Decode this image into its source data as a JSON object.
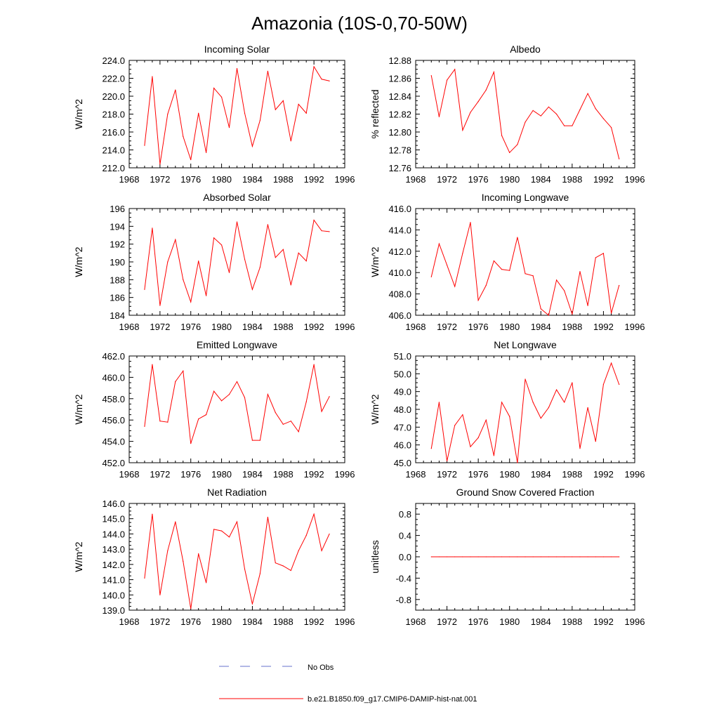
{
  "page": {
    "title": "Amazonia (10S-0,70-50W)"
  },
  "legend": {
    "items": [
      {
        "label": "No Obs",
        "color": "#6670cc",
        "dashed": true
      },
      {
        "label": "b.e21.B1850.f09_g17.CMIP6-DAMIP-hist-nat.001",
        "color": "#ff0000",
        "dashed": false
      }
    ]
  },
  "colors": {
    "model": "#ff0000",
    "obs": "#6670cc"
  },
  "chart_data": [
    {
      "type": "line",
      "title": "Incoming Solar",
      "ylabel": "W/m^2",
      "xlim": [
        1968,
        1996
      ],
      "ylim": [
        212,
        224
      ],
      "xticks": [
        1968,
        1972,
        1976,
        1980,
        1984,
        1988,
        1992,
        1996
      ],
      "yticks": [
        "212.0",
        "214.0",
        "216.0",
        "218.0",
        "220.0",
        "222.0",
        "224.0"
      ],
      "x": [
        1970,
        1971,
        1972,
        1973,
        1974,
        1975,
        1976,
        1977,
        1978,
        1979,
        1980,
        1981,
        1982,
        1983,
        1984,
        1985,
        1986,
        1987,
        1988,
        1989,
        1990,
        1991,
        1992,
        1993,
        1994
      ],
      "series": [
        {
          "values": [
            214.5,
            222.2,
            212.4,
            218.0,
            220.7,
            215.5,
            212.9,
            218.1,
            213.7,
            220.9,
            219.9,
            216.5,
            223.1,
            218.1,
            214.4,
            217.3,
            222.8,
            218.5,
            219.5,
            215.0,
            219.1,
            218.1,
            223.3,
            221.9,
            221.7
          ]
        }
      ]
    },
    {
      "type": "line",
      "title": "Albedo",
      "ylabel": "% reflected",
      "xlim": [
        1968,
        1996
      ],
      "ylim": [
        12.76,
        12.88
      ],
      "xticks": [
        1968,
        1972,
        1976,
        1980,
        1984,
        1988,
        1992,
        1996
      ],
      "yticks": [
        "12.76",
        "12.78",
        "12.80",
        "12.82",
        "12.84",
        "12.86",
        "12.88"
      ],
      "x": [
        1970,
        1971,
        1972,
        1973,
        1974,
        1975,
        1976,
        1977,
        1978,
        1979,
        1980,
        1981,
        1982,
        1983,
        1984,
        1985,
        1986,
        1987,
        1988,
        1989,
        1990,
        1991,
        1992,
        1993,
        1994
      ],
      "series": [
        {
          "values": [
            12.863,
            12.817,
            12.858,
            12.87,
            12.802,
            12.822,
            12.834,
            12.847,
            12.867,
            12.796,
            12.777,
            12.786,
            12.811,
            12.824,
            12.818,
            12.828,
            12.82,
            12.807,
            12.807,
            12.825,
            12.843,
            12.826,
            12.815,
            12.805,
            12.77
          ]
        }
      ]
    },
    {
      "type": "line",
      "title": "Absorbed Solar",
      "ylabel": "W/m^2",
      "xlim": [
        1968,
        1996
      ],
      "ylim": [
        184,
        196
      ],
      "xticks": [
        1968,
        1972,
        1976,
        1980,
        1984,
        1988,
        1992,
        1996
      ],
      "yticks": [
        "184",
        "186",
        "188",
        "190",
        "192",
        "194",
        "196"
      ],
      "x": [
        1970,
        1971,
        1972,
        1973,
        1974,
        1975,
        1976,
        1977,
        1978,
        1979,
        1980,
        1981,
        1982,
        1983,
        1984,
        1985,
        1986,
        1987,
        1988,
        1989,
        1990,
        1991,
        1992,
        1993,
        1994
      ],
      "series": [
        {
          "values": [
            186.9,
            193.8,
            185.1,
            190.0,
            192.5,
            188.0,
            185.5,
            190.1,
            186.2,
            192.7,
            191.9,
            188.8,
            194.5,
            190.3,
            186.9,
            189.4,
            194.2,
            190.5,
            191.4,
            187.4,
            191.0,
            190.1,
            194.7,
            193.5,
            193.4
          ]
        }
      ]
    },
    {
      "type": "line",
      "title": "Incoming Longwave",
      "ylabel": "W/m^2",
      "xlim": [
        1968,
        1996
      ],
      "ylim": [
        406,
        416
      ],
      "xticks": [
        1968,
        1972,
        1976,
        1980,
        1984,
        1988,
        1992,
        1996
      ],
      "yticks": [
        "406.0",
        "408.0",
        "410.0",
        "412.0",
        "414.0",
        "416.0"
      ],
      "x": [
        1970,
        1971,
        1972,
        1973,
        1974,
        1975,
        1976,
        1977,
        1978,
        1979,
        1980,
        1981,
        1982,
        1983,
        1984,
        1985,
        1986,
        1987,
        1988,
        1989,
        1990,
        1991,
        1992,
        1993,
        1994
      ],
      "series": [
        {
          "values": [
            409.6,
            412.7,
            410.7,
            408.7,
            411.8,
            414.7,
            407.4,
            408.8,
            411.1,
            410.3,
            410.2,
            413.3,
            409.9,
            409.7,
            406.6,
            406.0,
            409.3,
            408.3,
            406.1,
            410.1,
            406.9,
            411.4,
            411.8,
            406.2,
            408.8
          ]
        }
      ]
    },
    {
      "type": "line",
      "title": "Emitted Longwave",
      "ylabel": "W/m^2",
      "xlim": [
        1968,
        1996
      ],
      "ylim": [
        452,
        462
      ],
      "xticks": [
        1968,
        1972,
        1976,
        1980,
        1984,
        1988,
        1992,
        1996
      ],
      "yticks": [
        "452.0",
        "454.0",
        "456.0",
        "458.0",
        "460.0",
        "462.0"
      ],
      "x": [
        1970,
        1971,
        1972,
        1973,
        1974,
        1975,
        1976,
        1977,
        1978,
        1979,
        1980,
        1981,
        1982,
        1983,
        1984,
        1985,
        1986,
        1987,
        1988,
        1989,
        1990,
        1991,
        1992,
        1993,
        1994
      ],
      "series": [
        {
          "values": [
            455.4,
            461.2,
            455.9,
            455.8,
            459.6,
            460.6,
            453.8,
            456.1,
            456.5,
            458.7,
            457.8,
            458.4,
            459.6,
            458.1,
            454.1,
            454.1,
            458.4,
            456.7,
            455.6,
            455.9,
            454.9,
            457.7,
            461.2,
            456.8,
            458.2
          ]
        }
      ]
    },
    {
      "type": "line",
      "title": "Net Longwave",
      "ylabel": "W/m^2",
      "xlim": [
        1968,
        1996
      ],
      "ylim": [
        45,
        51
      ],
      "xticks": [
        1968,
        1972,
        1976,
        1980,
        1984,
        1988,
        1992,
        1996
      ],
      "yticks": [
        "45.0",
        "46.0",
        "47.0",
        "48.0",
        "49.0",
        "50.0",
        "51.0"
      ],
      "x": [
        1970,
        1971,
        1972,
        1973,
        1974,
        1975,
        1976,
        1977,
        1978,
        1979,
        1980,
        1981,
        1982,
        1983,
        1984,
        1985,
        1986,
        1987,
        1988,
        1989,
        1990,
        1991,
        1992,
        1993,
        1994
      ],
      "series": [
        {
          "values": [
            45.8,
            48.4,
            45.1,
            47.1,
            47.7,
            45.9,
            46.4,
            47.4,
            45.4,
            48.4,
            47.6,
            45.0,
            49.7,
            48.4,
            47.5,
            48.1,
            49.1,
            48.4,
            49.5,
            45.8,
            48.1,
            46.2,
            49.4,
            50.6,
            49.4
          ]
        }
      ]
    },
    {
      "type": "line",
      "title": "Net Radiation",
      "ylabel": "W/m^2",
      "xlim": [
        1968,
        1996
      ],
      "ylim": [
        139,
        146
      ],
      "xticks": [
        1968,
        1972,
        1976,
        1980,
        1984,
        1988,
        1992,
        1996
      ],
      "yticks": [
        "139.0",
        "140.0",
        "141.0",
        "142.0",
        "143.0",
        "144.0",
        "145.0",
        "146.0"
      ],
      "x": [
        1970,
        1971,
        1972,
        1973,
        1974,
        1975,
        1976,
        1977,
        1978,
        1979,
        1980,
        1981,
        1982,
        1983,
        1984,
        1985,
        1986,
        1987,
        1988,
        1989,
        1990,
        1991,
        1992,
        1993,
        1994
      ],
      "series": [
        {
          "values": [
            141.1,
            145.3,
            140.0,
            142.9,
            144.8,
            142.2,
            139.1,
            142.7,
            140.8,
            144.3,
            144.2,
            143.8,
            144.8,
            141.7,
            139.4,
            141.4,
            145.1,
            142.1,
            141.9,
            141.6,
            142.9,
            143.9,
            145.3,
            142.9,
            144.0
          ]
        }
      ]
    },
    {
      "type": "line",
      "title": "Ground Snow Covered Fraction",
      "ylabel": "unitless",
      "xlim": [
        1968,
        1996
      ],
      "ylim": [
        -1,
        1
      ],
      "xticks": [
        1968,
        1972,
        1976,
        1980,
        1984,
        1988,
        1992,
        1996
      ],
      "yticks": [
        "-0.8",
        "-0.4",
        "0.0",
        "0.4",
        "0.8"
      ],
      "yticks_at": [
        -0.8,
        -0.4,
        0.0,
        0.4,
        0.8
      ],
      "x": [
        1970,
        1971,
        1972,
        1973,
        1974,
        1975,
        1976,
        1977,
        1978,
        1979,
        1980,
        1981,
        1982,
        1983,
        1984,
        1985,
        1986,
        1987,
        1988,
        1989,
        1990,
        1991,
        1992,
        1993,
        1994
      ],
      "series": [
        {
          "values": [
            0,
            0,
            0,
            0,
            0,
            0,
            0,
            0,
            0,
            0,
            0,
            0,
            0,
            0,
            0,
            0,
            0,
            0,
            0,
            0,
            0,
            0,
            0,
            0,
            0
          ]
        }
      ]
    }
  ]
}
